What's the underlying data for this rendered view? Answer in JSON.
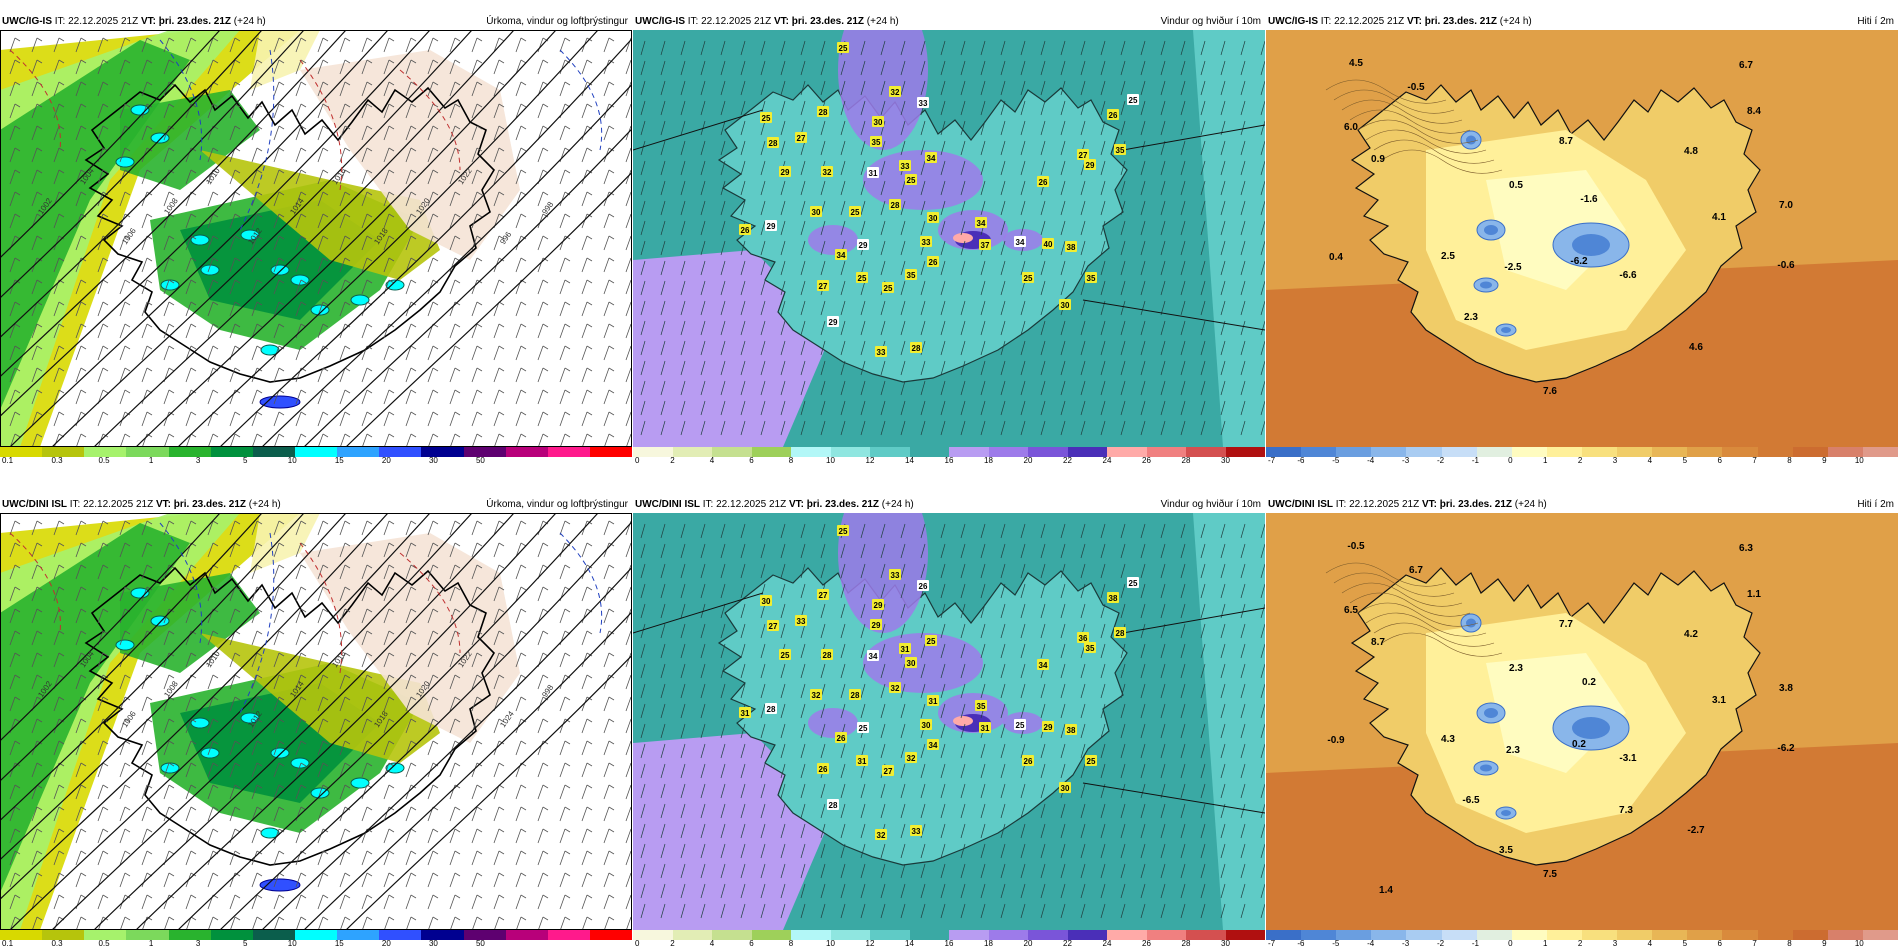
{
  "panels": [
    {
      "model": "UWC/IG-IS",
      "it_label": "IT:",
      "it": "22.12.2025 21Z",
      "vt_label": "VT:",
      "vt": "þri. 23.des. 21Z",
      "lead": "(+24 h)",
      "title": "Úrkoma, vindur og loftþrýstingur",
      "type": "precip",
      "colorbar": {
        "labels": [
          "0.1",
          "0.3",
          "0.5",
          "1",
          "3",
          "5",
          "10",
          "15",
          "20",
          "30",
          "50"
        ],
        "colors": [
          "#d8d900",
          "#b6c40c",
          "#a6f26c",
          "#7cd95c",
          "#29b32e",
          "#00913d",
          "#0b5e4c",
          "#00ffff",
          "#2ea3ff",
          "#3050ff",
          "#000090",
          "#5e0070",
          "#b8007a",
          "#ff1a8c",
          "#ff0000"
        ]
      },
      "isobars": [
        "1000",
        "1002",
        "1004",
        "1006",
        "1008",
        "1010",
        "1012",
        "1014",
        "1016",
        "1018",
        "1020",
        "1022",
        "996",
        "998"
      ]
    },
    {
      "model": "UWC/IG-IS",
      "it_label": "IT:",
      "it": "22.12.2025 21Z",
      "vt_label": "VT:",
      "vt": "þri. 23.des. 21Z",
      "lead": "(+24 h)",
      "title": "Vindur og hviður í 10m",
      "type": "wind",
      "colorbar": {
        "labels": [
          "0",
          "2",
          "4",
          "6",
          "8",
          "10",
          "12",
          "14",
          "16",
          "18",
          "20",
          "22",
          "24",
          "26",
          "28",
          "30"
        ],
        "colors": [
          "#f7f7dd",
          "#e2edb5",
          "#c5e090",
          "#9ed05a",
          "#b2f7f7",
          "#8fe6e0",
          "#5fcbc6",
          "#3aa9a4",
          "#b89cf2",
          "#9d7bea",
          "#7a55d9",
          "#4a2fb8",
          "#ffaaa8",
          "#f08080",
          "#d45050",
          "#b01010"
        ]
      },
      "gusts": [
        "25",
        "25",
        "32",
        "28",
        "30",
        "33",
        "35",
        "27",
        "28",
        "29",
        "32",
        "31",
        "33",
        "34",
        "25",
        "30",
        "26",
        "29",
        "34",
        "28",
        "25",
        "33",
        "30",
        "29",
        "25",
        "35",
        "26",
        "34",
        "37",
        "34",
        "40",
        "25",
        "26",
        "27",
        "38",
        "25",
        "26",
        "29",
        "35",
        "27",
        "25",
        "29",
        "33",
        "28",
        "30",
        "35"
      ]
    },
    {
      "model": "UWC/IG-IS",
      "it_label": "IT:",
      "it": "22.12.2025 21Z",
      "vt_label": "VT:",
      "vt": "þri. 23.des. 21Z",
      "lead": "(+24 h)",
      "title": "Hiti í 2m",
      "type": "temp",
      "colorbar": {
        "labels": [
          "-7",
          "-6",
          "-5",
          "-4",
          "-3",
          "-2",
          "-1",
          "0",
          "1",
          "2",
          "3",
          "4",
          "5",
          "6",
          "7",
          "8",
          "9",
          "10"
        ],
        "colors": [
          "#3a6fc8",
          "#4f86d6",
          "#6a9ee0",
          "#89b6ea",
          "#a9ccf2",
          "#c7def7",
          "#e1efe0",
          "#fffcc0",
          "#fff09a",
          "#f8e07e",
          "#f0cc68",
          "#e8b656",
          "#e0a048",
          "#d98a3c",
          "#d27a34",
          "#cc6c30",
          "#d8806a",
          "#e09a8a"
        ]
      },
      "temps": [
        "4.5",
        "-0.5",
        "6.7",
        "6.0",
        "8.4",
        "0.9",
        "8.7",
        "4.8",
        "0.5",
        "-1.6",
        "7.0",
        "4.1",
        "0.4",
        "2.5",
        "-2.5",
        "-6.2",
        "-6.6",
        "-0.6",
        "2.3",
        "4.6",
        "7.6"
      ]
    },
    {
      "model": "UWC/DINI ISL",
      "it_label": "IT:",
      "it": "22.12.2025 21Z",
      "vt_label": "VT:",
      "vt": "þri. 23.des. 21Z",
      "lead": "(+24 h)",
      "title": "Úrkoma, vindur og loftþrýstingur",
      "type": "precip",
      "colorbar": {
        "labels": [
          "0.1",
          "0.3",
          "0.5",
          "1",
          "3",
          "5",
          "10",
          "15",
          "20",
          "30",
          "50"
        ],
        "colors": [
          "#d8d900",
          "#b6c40c",
          "#a6f26c",
          "#7cd95c",
          "#29b32e",
          "#00913d",
          "#0b5e4c",
          "#00ffff",
          "#2ea3ff",
          "#3050ff",
          "#000090",
          "#5e0070",
          "#b8007a",
          "#ff1a8c",
          "#ff0000"
        ]
      },
      "isobars": [
        "1000",
        "1002",
        "1004",
        "1006",
        "1008",
        "1010",
        "1012",
        "1014",
        "1016",
        "1018",
        "1020",
        "1022",
        "1024",
        "998"
      ]
    },
    {
      "model": "UWC/DINI ISL",
      "it_label": "IT:",
      "it": "22.12.2025 21Z",
      "vt_label": "VT:",
      "vt": "þri. 23.des. 21Z",
      "lead": "(+24 h)",
      "title": "Vindur og hviður í 10m",
      "type": "wind",
      "colorbar": {
        "labels": [
          "0",
          "2",
          "4",
          "6",
          "8",
          "10",
          "12",
          "14",
          "16",
          "18",
          "20",
          "22",
          "24",
          "26",
          "28",
          "30"
        ],
        "colors": [
          "#f7f7dd",
          "#e2edb5",
          "#c5e090",
          "#9ed05a",
          "#b2f7f7",
          "#8fe6e0",
          "#5fcbc6",
          "#3aa9a4",
          "#b89cf2",
          "#9d7bea",
          "#7a55d9",
          "#4a2fb8",
          "#ffaaa8",
          "#f08080",
          "#d45050",
          "#b01010"
        ]
      },
      "gusts": [
        "25",
        "30",
        "33",
        "27",
        "29",
        "26",
        "29",
        "33",
        "27",
        "25",
        "28",
        "34",
        "31",
        "25",
        "30",
        "32",
        "31",
        "28",
        "26",
        "32",
        "28",
        "30",
        "31",
        "25",
        "31",
        "32",
        "34",
        "35",
        "31",
        "25",
        "29",
        "26",
        "34",
        "36",
        "38",
        "25",
        "38",
        "35",
        "28",
        "26",
        "27",
        "28",
        "32",
        "33",
        "30",
        "25"
      ]
    },
    {
      "model": "UWC/DINI ISL",
      "it_label": "IT:",
      "it": "22.12.2025 21Z",
      "vt_label": "VT:",
      "vt": "þri. 23.des. 21Z",
      "lead": "(+24 h)",
      "title": "Hiti í 2m",
      "type": "temp",
      "colorbar": {
        "labels": [
          "-7",
          "-6",
          "-5",
          "-4",
          "-3",
          "-2",
          "-1",
          "0",
          "1",
          "2",
          "3",
          "4",
          "5",
          "6",
          "7",
          "8",
          "9",
          "10"
        ],
        "colors": [
          "#3a6fc8",
          "#4f86d6",
          "#6a9ee0",
          "#89b6ea",
          "#a9ccf2",
          "#c7def7",
          "#e1efe0",
          "#fffcc0",
          "#fff09a",
          "#f8e07e",
          "#f0cc68",
          "#e8b656",
          "#e0a048",
          "#d98a3c",
          "#d27a34",
          "#cc6c30",
          "#d8806a",
          "#e09a8a"
        ]
      },
      "temps": [
        "-0.5",
        "6.7",
        "6.3",
        "6.5",
        "1.1",
        "8.7",
        "7.7",
        "4.2",
        "2.3",
        "0.2",
        "3.8",
        "3.1",
        "-0.9",
        "4.3",
        "2.3",
        "0.2",
        "-3.1",
        "-6.2",
        "-6.5",
        "-2.7",
        "7.5",
        "1.4",
        "3.5",
        "7.3"
      ]
    }
  ]
}
